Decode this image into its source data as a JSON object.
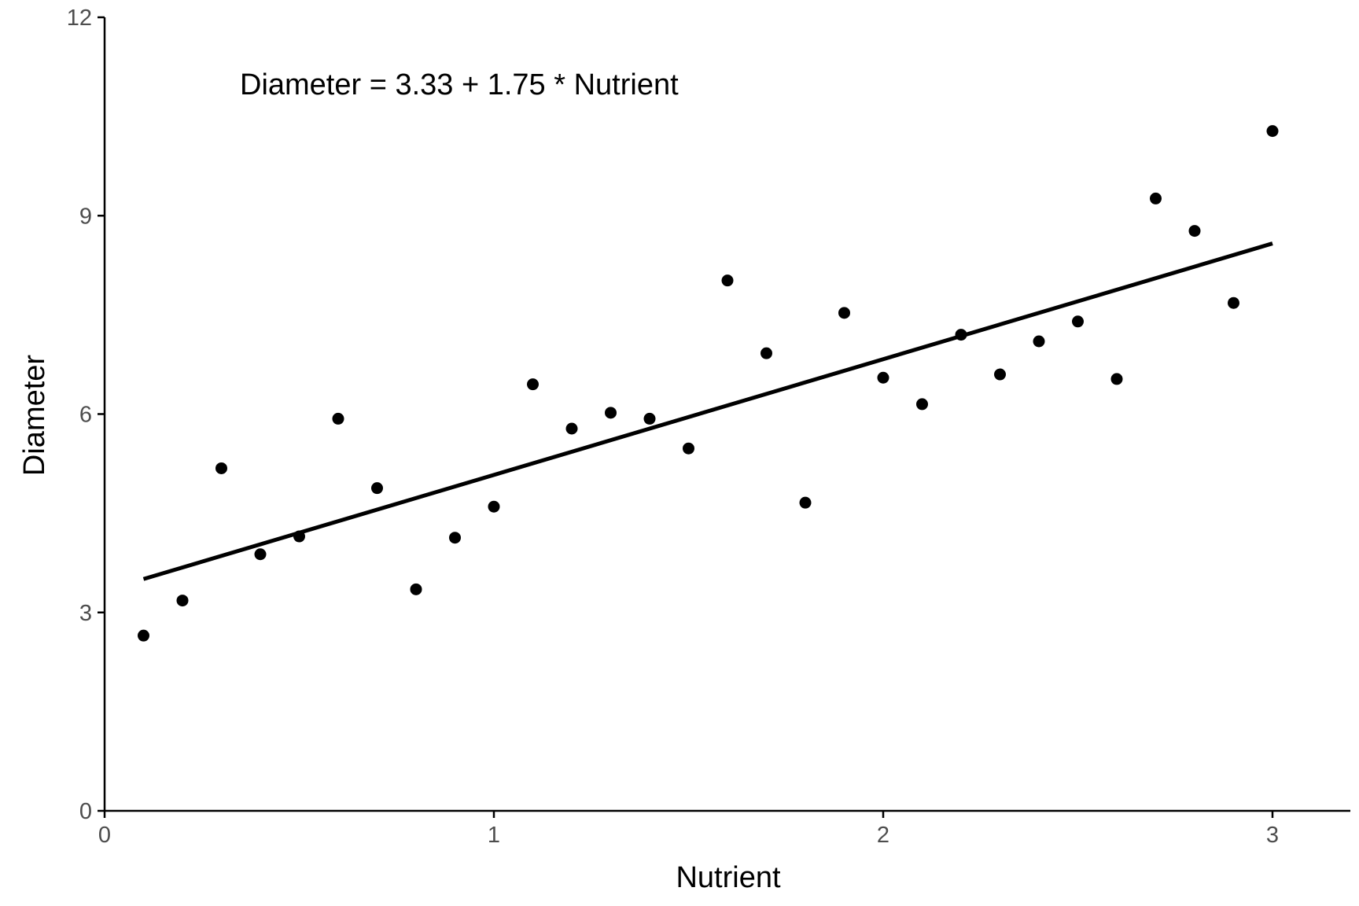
{
  "chart_data": {
    "type": "scatter",
    "title": "",
    "annotation": "Diameter = 3.33 + 1.75 * Nutrient",
    "xlabel": "Nutrient",
    "ylabel": "Diameter",
    "xlim": [
      0,
      3.2
    ],
    "ylim": [
      0,
      12
    ],
    "xticks": [
      0,
      1,
      2,
      3
    ],
    "yticks": [
      0,
      3,
      6,
      9,
      12
    ],
    "xtick_labels": [
      "0",
      "1",
      "2",
      "3"
    ],
    "ytick_labels": [
      "0",
      "3",
      "6",
      "9",
      "12"
    ],
    "grid": false,
    "legend": "none",
    "colors": {
      "points": "#000000",
      "line": "#000000",
      "axis": "#000000",
      "tick_text": "#4d4d4d"
    },
    "fit_line": {
      "intercept": 3.33,
      "slope": 1.75,
      "x_range": [
        0.1,
        3.0
      ]
    },
    "points": {
      "x": [
        0.1,
        0.2,
        0.3,
        0.4,
        0.5,
        0.6,
        0.7,
        0.8,
        0.9,
        1.0,
        1.1,
        1.2,
        1.3,
        1.4,
        1.5,
        1.6,
        1.7,
        1.8,
        1.9,
        2.0,
        2.1,
        2.2,
        2.3,
        2.4,
        2.5,
        2.6,
        2.7,
        2.8,
        2.9,
        3.0
      ],
      "y": [
        2.65,
        3.18,
        5.18,
        3.88,
        4.15,
        5.93,
        4.88,
        3.35,
        4.13,
        4.6,
        6.45,
        5.78,
        6.02,
        5.93,
        5.48,
        8.02,
        6.92,
        4.66,
        7.53,
        6.55,
        6.15,
        7.2,
        6.6,
        7.1,
        7.4,
        6.53,
        9.26,
        8.77,
        7.68,
        10.28
      ]
    }
  }
}
